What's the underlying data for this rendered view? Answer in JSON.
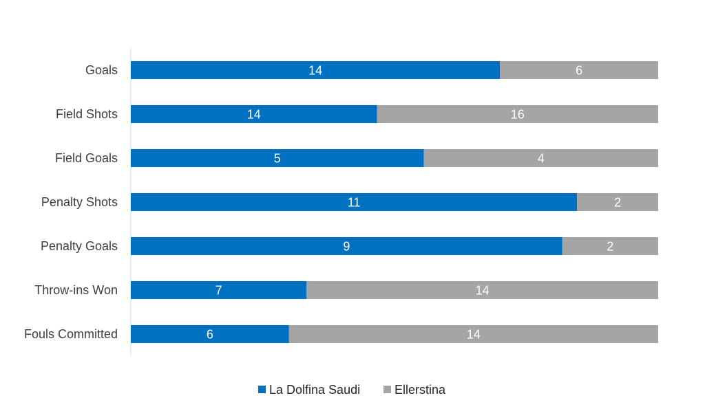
{
  "chart_data": {
    "type": "bar",
    "orientation": "horizontal",
    "stacking": "percent",
    "title": "",
    "xlabel": "",
    "ylabel": "",
    "categories": [
      "Goals",
      "Field Shots",
      "Field Goals",
      "Penalty Shots",
      "Penalty Goals",
      "Throw-ins Won",
      "Fouls Committed"
    ],
    "series": [
      {
        "name": "La Dolfina Saudi",
        "color": "#0070C0",
        "values": [
          14,
          14,
          5,
          11,
          9,
          7,
          6
        ]
      },
      {
        "name": "Ellerstina",
        "color": "#A5A5A5",
        "values": [
          6,
          16,
          4,
          2,
          2,
          14,
          14
        ]
      }
    ],
    "grid": false,
    "legend": "bottom"
  }
}
